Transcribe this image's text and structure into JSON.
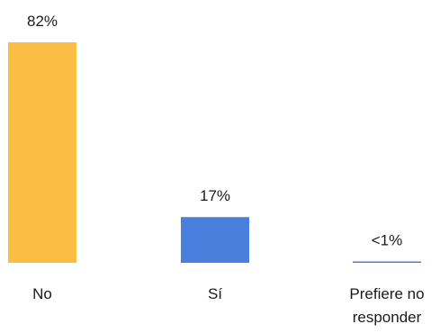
{
  "chart_data": {
    "type": "bar",
    "categories": [
      [
        "No"
      ],
      [
        "Sí"
      ],
      [
        "Prefiere no",
        "responder"
      ]
    ],
    "values": [
      82,
      17,
      0.5
    ],
    "data_labels": [
      "82%",
      "17%",
      "<1%"
    ],
    "colors": [
      "#FBBE45",
      "#4A7FDD",
      "#4A7FDD"
    ],
    "ylim": [
      0,
      82
    ],
    "grid": false,
    "legend": "none"
  }
}
